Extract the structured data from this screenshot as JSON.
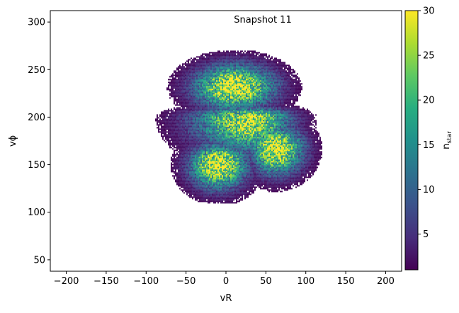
{
  "chart_data": {
    "type": "heatmap",
    "title": "Snapshot 11",
    "xlabel": "vR",
    "ylabel": "vϕ",
    "xlim": [
      -220,
      220
    ],
    "ylim": [
      38,
      312
    ],
    "xticks": [
      -200,
      -150,
      -100,
      -50,
      0,
      50,
      100,
      150,
      200
    ],
    "yticks": [
      50,
      100,
      150,
      200,
      250,
      300
    ],
    "grid": false,
    "colormap": "viridis",
    "colorbar": {
      "label_main": "n",
      "label_sub": "star",
      "min": 1,
      "max": 30,
      "ticks": [
        5,
        10,
        15,
        20,
        25,
        30
      ]
    },
    "density_features": [
      {
        "name": "upper arch",
        "vR_range": [
          -60,
          80
        ],
        "vphi_range": [
          200,
          265
        ],
        "peak_vR": 10,
        "peak_vphi": 232,
        "peak_counts": 30
      },
      {
        "name": "middle band",
        "vR_range": [
          -70,
          100
        ],
        "vphi_range": [
          150,
          215
        ],
        "peak_vR": 30,
        "peak_vphi": 200,
        "peak_counts": 27
      },
      {
        "name": "lower-left clump",
        "vR_range": [
          -60,
          40
        ],
        "vphi_range": [
          115,
          180
        ],
        "peak_vR": -10,
        "peak_vphi": 152,
        "peak_counts": 30
      },
      {
        "name": "lower-right clump",
        "vR_range": [
          20,
          110
        ],
        "vphi_range": [
          130,
          200
        ],
        "peak_vR": 60,
        "peak_vphi": 168,
        "peak_counts": 30
      }
    ]
  }
}
